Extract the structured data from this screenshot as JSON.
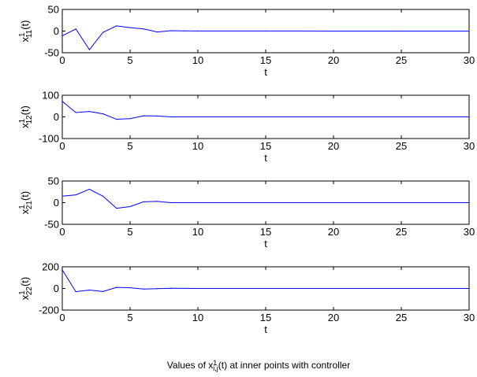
{
  "caption": {
    "prefix": "Values of x",
    "sup": "1",
    "sub": "i,j",
    "suffix": "(t) at inner points with controller"
  },
  "chart_data": [
    {
      "type": "line",
      "xlabel": "t",
      "ylabel": {
        "base": "x",
        "sup": "1",
        "sub": "11",
        "tail": "(t)"
      },
      "xlim": [
        0,
        30
      ],
      "ylim": [
        -50,
        50
      ],
      "xticks": [
        0,
        5,
        10,
        15,
        20,
        25,
        30
      ],
      "yticks": [
        -50,
        0,
        50
      ],
      "color": "#0000ff",
      "series": [
        {
          "x": [
            0,
            1,
            2,
            3,
            4,
            5,
            6,
            7,
            8,
            9,
            10,
            15,
            20,
            25,
            30
          ],
          "y": [
            -11,
            5,
            -43,
            -3,
            12,
            8,
            5,
            -2,
            1,
            0.5,
            0.3,
            0.2,
            0.1,
            0.1,
            0
          ]
        }
      ]
    },
    {
      "type": "line",
      "xlabel": "t",
      "ylabel": {
        "base": "x",
        "sup": "1",
        "sub": "12",
        "tail": "(t)"
      },
      "xlim": [
        0,
        30
      ],
      "ylim": [
        -100,
        100
      ],
      "xticks": [
        0,
        5,
        10,
        15,
        20,
        25,
        30
      ],
      "yticks": [
        -100,
        0,
        100
      ],
      "color": "#0000ff",
      "series": [
        {
          "x": [
            0,
            1,
            2,
            3,
            4,
            5,
            6,
            7,
            8,
            9,
            10,
            15,
            20,
            25,
            30
          ],
          "y": [
            72,
            20,
            25,
            14,
            -11,
            -8,
            5,
            4,
            0,
            0,
            0,
            0,
            0,
            0,
            0
          ]
        }
      ]
    },
    {
      "type": "line",
      "xlabel": "t",
      "ylabel": {
        "base": "x",
        "sup": "1",
        "sub": "21",
        "tail": "(t)"
      },
      "xlim": [
        0,
        30
      ],
      "ylim": [
        -50,
        50
      ],
      "xticks": [
        0,
        5,
        10,
        15,
        20,
        25,
        30
      ],
      "yticks": [
        -50,
        0,
        50
      ],
      "color": "#0000ff",
      "series": [
        {
          "x": [
            0,
            1,
            2,
            3,
            4,
            5,
            6,
            7,
            8,
            9,
            10,
            15,
            20,
            25,
            30
          ],
          "y": [
            15,
            18,
            31,
            15,
            -13,
            -9,
            2,
            3,
            0,
            0,
            0,
            0,
            0,
            0,
            0
          ]
        }
      ]
    },
    {
      "type": "line",
      "xlabel": "t",
      "ylabel": {
        "base": "x",
        "sup": "1",
        "sub": "22",
        "tail": "(t)"
      },
      "xlim": [
        0,
        30
      ],
      "ylim": [
        -200,
        200
      ],
      "xticks": [
        0,
        5,
        10,
        15,
        20,
        25,
        30
      ],
      "yticks": [
        -200,
        0,
        200
      ],
      "color": "#0000ff",
      "series": [
        {
          "x": [
            0,
            1,
            2,
            3,
            4,
            5,
            6,
            7,
            8,
            9,
            10,
            15,
            20,
            25,
            30
          ],
          "y": [
            172,
            -30,
            -15,
            -28,
            10,
            6,
            -5,
            -2,
            2,
            1,
            0,
            0,
            0,
            0,
            0
          ]
        }
      ]
    }
  ]
}
